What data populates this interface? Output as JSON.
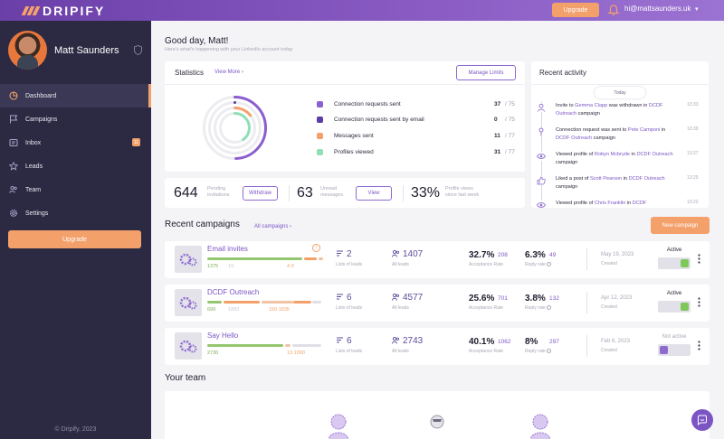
{
  "brand": {
    "name": "DRIPIFY",
    "accent": "#7c55c4",
    "orange": "#f4a06b",
    "sidebar_bg": "#2c2a43"
  },
  "header": {
    "upgrade_label": "Upgrade",
    "email": "hi@mattsaunders.uk",
    "icons": [
      "bell-icon",
      "chevron-down-icon"
    ]
  },
  "user": {
    "name": "Matt Saunders"
  },
  "sidebar": {
    "items": [
      {
        "label": "Dashboard",
        "icon": "pie-icon",
        "active": true
      },
      {
        "label": "Campaigns",
        "icon": "flag-icon"
      },
      {
        "label": "Inbox",
        "icon": "inbox-icon",
        "badge": "11"
      },
      {
        "label": "Leads",
        "icon": "star-icon"
      },
      {
        "label": "Team",
        "icon": "team-icon"
      },
      {
        "label": "Settings",
        "icon": "gear-icon"
      }
    ],
    "upgrade_label": "Upgrade",
    "copyright": "© Dripify, 2023"
  },
  "greeting": {
    "title": "Good day, Matt!",
    "subtitle": "Here's what's happening with your LinkedIn account today"
  },
  "statistics": {
    "title": "Statistics",
    "view_more": "View More",
    "manage_limits": "Manage Limits",
    "rows": [
      {
        "label": "Connection requests sent",
        "value": "37",
        "total": "/ 75",
        "color": "#8b5fcf"
      },
      {
        "label": "Connection requests sent by email",
        "value": "0",
        "total": "/ 75",
        "color": "#5b3ea3"
      },
      {
        "label": "Messages sent",
        "value": "11",
        "total": "/ 77",
        "color": "#f4a06b"
      },
      {
        "label": "Profiles viewed",
        "value": "31",
        "total": "/ 77",
        "color": "#8fe0b5"
      }
    ]
  },
  "metrics": {
    "pending": {
      "value": "644",
      "label_line1": "Pending",
      "label_line2": "invitations",
      "button": "Withdraw"
    },
    "unread": {
      "value": "63",
      "label_line1": "Unread",
      "label_line2": "messages",
      "button": "View"
    },
    "views": {
      "value": "33%",
      "label_line1": "Profile views",
      "label_line2": "since last week"
    }
  },
  "activity": {
    "title": "Recent activity",
    "today": "Today",
    "items": [
      {
        "pre": "Invite to ",
        "link1": "Gemma Clapp",
        "mid": " was withdrawn in ",
        "link2": "DCDF Outreach",
        "post": " campaign",
        "time": "13:33",
        "icon": "user-icon"
      },
      {
        "pre": "Connection request was sent to ",
        "link1": "Pete Camponi",
        "mid": " in ",
        "link2": "DCDF Outreach",
        "post": " campaign",
        "time": "13:30",
        "icon": "user-plus-icon"
      },
      {
        "pre": "Viewed profile of ",
        "link1": "Robyn Mcbryde",
        "mid": " in ",
        "link2": "DCDF Outreach",
        "post": " campaign",
        "time": "13:27",
        "icon": "eye-icon"
      },
      {
        "pre": "Liked a post of ",
        "link1": "Scott Pearson",
        "mid": " in ",
        "link2": "DCDF Outreach",
        "post": " campaign",
        "time": "13:25",
        "icon": "thumbs-up-icon"
      },
      {
        "pre": "Viewed profile of ",
        "link1": "Chris Franklin",
        "mid": " in ",
        "link2": "DCDF",
        "post": "",
        "time": "13:22",
        "icon": "eye-icon"
      }
    ]
  },
  "recent_campaigns": {
    "title": "Recent campaigns",
    "all_label": "All campaigns",
    "new_label": "New campaign",
    "items": [
      {
        "name": "Email invites",
        "bar_left": "1375",
        "bar_mid": "19",
        "bar_right": "4 9",
        "leads": "2",
        "leads_label": "Lists of leads",
        "all": "1407",
        "all_label": "All leads",
        "acc_rate": "32.7%",
        "acc_num": "208",
        "acc_label": "Acceptance Rate",
        "reply_rate": "6.3%",
        "reply_num": "49",
        "reply_label": "Reply rate",
        "date": "May 19, 2023",
        "date_label": "Created",
        "status": "Active",
        "active": true,
        "warning": true
      },
      {
        "name": "DCDF Outreach",
        "bar_left": "699",
        "bar_mid": "1893",
        "bar_right": "150 1835",
        "leads": "6",
        "leads_label": "Lists of leads",
        "all": "4577",
        "all_label": "All leads",
        "acc_rate": "25.6%",
        "acc_num": "701",
        "acc_label": "Acceptance Rate",
        "reply_rate": "3.8%",
        "reply_num": "132",
        "reply_label": "Reply rate",
        "date": "Apr 12, 2023",
        "date_label": "Created",
        "status": "Active",
        "active": true,
        "warning": false
      },
      {
        "name": "Say Hello",
        "bar_left": "2730",
        "bar_mid": "",
        "bar_right": "13 1000",
        "leads": "6",
        "leads_label": "Lists of leads",
        "all": "2743",
        "all_label": "All leads",
        "acc_rate": "40.1%",
        "acc_num": "1062",
        "acc_label": "Acceptance Rate",
        "reply_rate": "8%",
        "reply_num": "297",
        "reply_label": "Reply rate",
        "date": "Feb 6, 2023",
        "date_label": "Created",
        "status": "Not active",
        "active": false,
        "warning": false
      }
    ]
  },
  "team": {
    "title": "Your team"
  }
}
